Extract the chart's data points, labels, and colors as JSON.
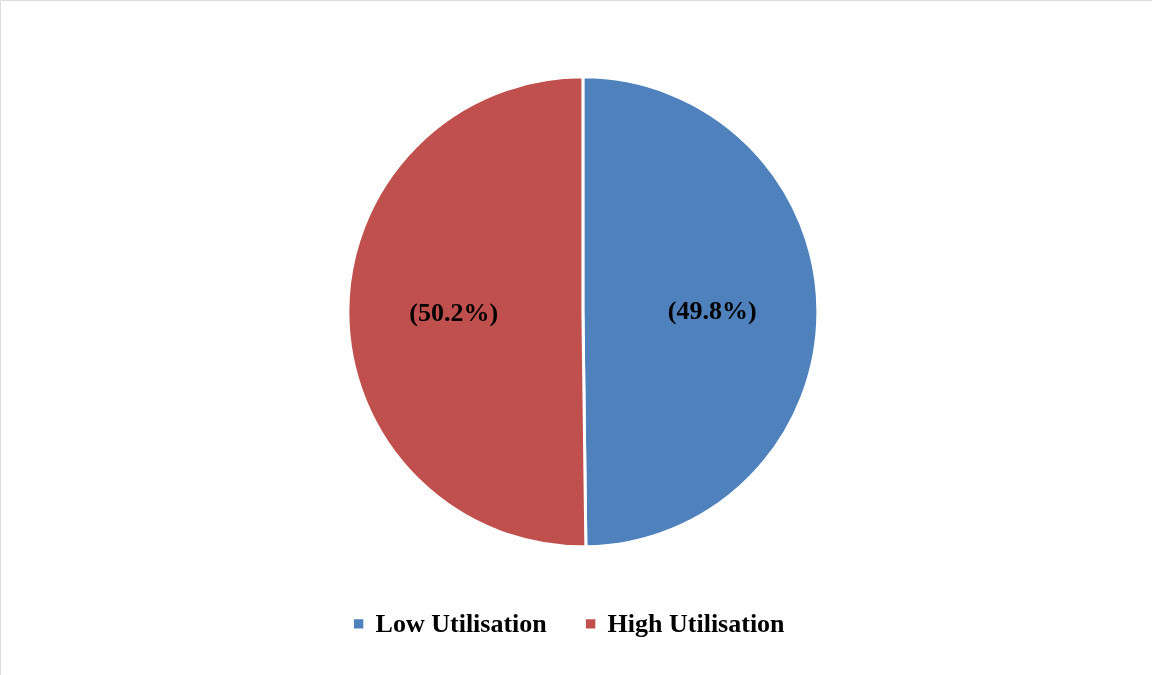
{
  "chart_data": {
    "type": "pie",
    "categories": [
      "Low Utilisation",
      "High Utilisation"
    ],
    "values": [
      49.8,
      50.2
    ],
    "colors": [
      "#4f81bd",
      "#c0504d"
    ],
    "value_labels": [
      "(49.8%)",
      "(50.2%)"
    ],
    "legend": "bottom"
  }
}
